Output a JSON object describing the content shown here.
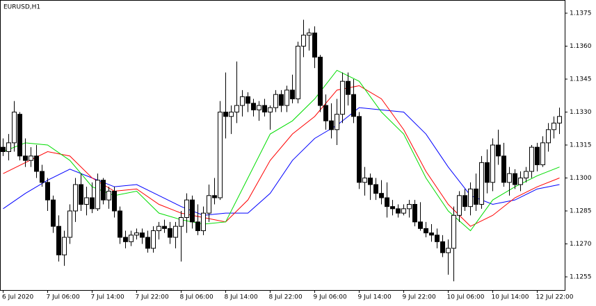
{
  "chart_data": {
    "type": "candlestick",
    "title": "EURUSD,H1",
    "categories": [
      "6 Jul 2020",
      null,
      null,
      null,
      null,
      null,
      null,
      null,
      "7 Jul 06:00",
      null,
      null,
      null,
      null,
      null,
      null,
      null,
      "7 Jul 14:00",
      null,
      null,
      null,
      null,
      null,
      null,
      null,
      "7 Jul 22:00",
      null,
      null,
      null,
      null,
      null,
      null,
      null,
      "8 Jul 06:00",
      null,
      null,
      null,
      null,
      null,
      null,
      null,
      "8 Jul 14:00",
      null,
      null,
      null,
      null,
      null,
      null,
      null,
      "8 Jul 22:00",
      null,
      null,
      null,
      null,
      null,
      null,
      null,
      "9 Jul 06:00",
      null,
      null,
      null,
      null,
      null,
      null,
      null,
      "9 Jul 14:00",
      null,
      null,
      null,
      null,
      null,
      null,
      null,
      "9 Jul 22:00",
      null,
      null,
      null,
      null,
      null,
      null,
      null,
      "10 Jul 06:00",
      null,
      null,
      null,
      null,
      null,
      null,
      null,
      "10 Jul 14:00",
      null,
      null,
      null,
      null,
      null,
      null,
      null,
      "12 Jul 22:00",
      null,
      null,
      null,
      null
    ],
    "ohlc": [
      [
        1.1314,
        1.1318,
        1.131,
        1.1312
      ],
      [
        1.1312,
        1.132,
        1.1308,
        1.1316
      ],
      [
        1.1316,
        1.1335,
        1.1312,
        1.133
      ],
      [
        1.1329,
        1.133,
        1.1308,
        1.131
      ],
      [
        1.131,
        1.1318,
        1.1305,
        1.1308
      ],
      [
        1.1308,
        1.1314,
        1.1305,
        1.131
      ],
      [
        1.131,
        1.1315,
        1.13,
        1.1303
      ],
      [
        1.1303,
        1.1306,
        1.1296,
        1.1298
      ],
      [
        1.1298,
        1.13,
        1.1285,
        1.129
      ],
      [
        1.129,
        1.1292,
        1.1275,
        1.1278
      ],
      [
        1.1278,
        1.1283,
        1.1262,
        1.1265
      ],
      [
        1.1265,
        1.1276,
        1.126,
        1.1273
      ],
      [
        1.1273,
        1.1288,
        1.127,
        1.1285
      ],
      [
        1.1285,
        1.13,
        1.128,
        1.1297
      ],
      [
        1.1297,
        1.1302,
        1.1285,
        1.1288
      ],
      [
        1.1288,
        1.1296,
        1.1283,
        1.1291
      ],
      [
        1.1291,
        1.1298,
        1.1284,
        1.1286
      ],
      [
        1.1286,
        1.1302,
        1.1285,
        1.1299
      ],
      [
        1.1299,
        1.13,
        1.1288,
        1.129
      ],
      [
        1.129,
        1.1296,
        1.1286,
        1.1294
      ],
      [
        1.1294,
        1.1296,
        1.1282,
        1.1285
      ],
      [
        1.1285,
        1.1287,
        1.127,
        1.1273
      ],
      [
        1.1273,
        1.1276,
        1.1268,
        1.1271
      ],
      [
        1.1271,
        1.1276,
        1.1269,
        1.1274
      ],
      [
        1.1274,
        1.1277,
        1.1272,
        1.1275
      ],
      [
        1.1275,
        1.1277,
        1.127,
        1.1273
      ],
      [
        1.1273,
        1.1276,
        1.1266,
        1.1268
      ],
      [
        1.1268,
        1.1278,
        1.1266,
        1.1276
      ],
      [
        1.1276,
        1.128,
        1.1272,
        1.1278
      ],
      [
        1.1278,
        1.1281,
        1.1275,
        1.1277
      ],
      [
        1.1277,
        1.128,
        1.127,
        1.1273
      ],
      [
        1.1273,
        1.128,
        1.1268,
        1.1278
      ],
      [
        1.1278,
        1.1285,
        1.1262,
        1.1282
      ],
      [
        1.1282,
        1.1293,
        1.1275,
        1.129
      ],
      [
        1.129,
        1.1292,
        1.1277,
        1.128
      ],
      [
        1.128,
        1.1288,
        1.1274,
        1.1276
      ],
      [
        1.1276,
        1.1287,
        1.1274,
        1.1284
      ],
      [
        1.1284,
        1.1297,
        1.128,
        1.1292
      ],
      [
        1.1292,
        1.13,
        1.1288,
        1.1291
      ],
      [
        1.1291,
        1.1335,
        1.129,
        1.133
      ],
      [
        1.133,
        1.1348,
        1.1318,
        1.1328
      ],
      [
        1.1328,
        1.1333,
        1.132,
        1.133
      ],
      [
        1.133,
        1.1353,
        1.1325,
        1.1333
      ],
      [
        1.1333,
        1.134,
        1.1328,
        1.1337
      ],
      [
        1.1337,
        1.1339,
        1.133,
        1.1334
      ],
      [
        1.1334,
        1.1336,
        1.1328,
        1.1331
      ],
      [
        1.1331,
        1.1335,
        1.1326,
        1.1333
      ],
      [
        1.1333,
        1.1336,
        1.1328,
        1.133
      ],
      [
        1.133,
        1.1333,
        1.1322,
        1.1332
      ],
      [
        1.1332,
        1.134,
        1.133,
        1.1338
      ],
      [
        1.1338,
        1.134,
        1.133,
        1.1333
      ],
      [
        1.1333,
        1.1342,
        1.133,
        1.134
      ],
      [
        1.134,
        1.1347,
        1.1334,
        1.1336
      ],
      [
        1.1336,
        1.1362,
        1.1334,
        1.136
      ],
      [
        1.136,
        1.1372,
        1.1355,
        1.1365
      ],
      [
        1.1365,
        1.1368,
        1.1358,
        1.1366
      ],
      [
        1.1366,
        1.1369,
        1.135,
        1.1355
      ],
      [
        1.1355,
        1.1356,
        1.133,
        1.1333
      ],
      [
        1.1333,
        1.1338,
        1.1322,
        1.1326
      ],
      [
        1.1326,
        1.1334,
        1.1318,
        1.1322
      ],
      [
        1.1322,
        1.1336,
        1.1315,
        1.1329
      ],
      [
        1.1329,
        1.1348,
        1.1325,
        1.1344
      ],
      [
        1.1344,
        1.1348,
        1.1333,
        1.1338
      ],
      [
        1.1338,
        1.1345,
        1.1325,
        1.1328
      ],
      [
        1.1328,
        1.133,
        1.1295,
        1.1298
      ],
      [
        1.1298,
        1.1305,
        1.1292,
        1.13
      ],
      [
        1.13,
        1.1302,
        1.129,
        1.1297
      ],
      [
        1.1297,
        1.13,
        1.129,
        1.1293
      ],
      [
        1.1293,
        1.1299,
        1.1288,
        1.1291
      ],
      [
        1.1291,
        1.1298,
        1.1282,
        1.1287
      ],
      [
        1.1287,
        1.129,
        1.1283,
        1.1286
      ],
      [
        1.1286,
        1.1288,
        1.1282,
        1.1284
      ],
      [
        1.1284,
        1.1288,
        1.1283,
        1.1286
      ],
      [
        1.1286,
        1.129,
        1.1282,
        1.1288
      ],
      [
        1.1288,
        1.129,
        1.1278,
        1.128
      ],
      [
        1.128,
        1.1289,
        1.1276,
        1.1277
      ],
      [
        1.1277,
        1.128,
        1.1273,
        1.1275
      ],
      [
        1.1275,
        1.1279,
        1.1271,
        1.1274
      ],
      [
        1.1274,
        1.1277,
        1.1268,
        1.1271
      ],
      [
        1.1271,
        1.1274,
        1.1264,
        1.1266
      ],
      [
        1.1266,
        1.1272,
        1.1256,
        1.1268
      ],
      [
        1.1268,
        1.1287,
        1.1253,
        1.1283
      ],
      [
        1.1283,
        1.1294,
        1.128,
        1.1292
      ],
      [
        1.1292,
        1.1295,
        1.1285,
        1.1287
      ],
      [
        1.1287,
        1.1298,
        1.1283,
        1.1295
      ],
      [
        1.1295,
        1.1302,
        1.1285,
        1.1288
      ],
      [
        1.1288,
        1.131,
        1.1286,
        1.1307
      ],
      [
        1.1307,
        1.1313,
        1.1293,
        1.1298
      ],
      [
        1.1298,
        1.1318,
        1.1294,
        1.1315
      ],
      [
        1.1315,
        1.1322,
        1.1306,
        1.131
      ],
      [
        1.131,
        1.1316,
        1.1296,
        1.1298
      ],
      [
        1.1298,
        1.1305,
        1.1292,
        1.1302
      ],
      [
        1.1302,
        1.1304,
        1.1295,
        1.1297
      ],
      [
        1.1297,
        1.1303,
        1.1294,
        1.13
      ],
      [
        1.13,
        1.1305,
        1.1298,
        1.1303
      ],
      [
        1.1303,
        1.1315,
        1.13,
        1.1314
      ],
      [
        1.1314,
        1.1316,
        1.1303,
        1.1306
      ],
      [
        1.1306,
        1.1319,
        1.1305,
        1.1316
      ],
      [
        1.1316,
        1.1325,
        1.1312,
        1.1322
      ],
      [
        1.1322,
        1.1328,
        1.1318,
        1.1325
      ],
      [
        1.1325,
        1.1332,
        1.132,
        1.1328
      ]
    ],
    "lines": [
      {
        "color": "#0000ff",
        "x": [
          0,
          4,
          8,
          12,
          16,
          20,
          24,
          28,
          32,
          36,
          40,
          44,
          48,
          52,
          56,
          60,
          64,
          68,
          72,
          76,
          80,
          84,
          88,
          92,
          96,
          100
        ],
        "values": [
          1.1286,
          1.1293,
          1.1299,
          1.1304,
          1.13,
          1.1296,
          1.1297,
          1.1292,
          1.1287,
          1.1283,
          1.1284,
          1.1284,
          1.1293,
          1.1308,
          1.1318,
          1.1324,
          1.1332,
          1.1331,
          1.133,
          1.132,
          1.1305,
          1.1292,
          1.1288,
          1.129,
          1.1295,
          1.1297
        ]
      },
      {
        "color": "#ff0000",
        "x": [
          0,
          4,
          8,
          12,
          16,
          20,
          24,
          28,
          32,
          36,
          40,
          44,
          48,
          52,
          56,
          60,
          64,
          68,
          72,
          76,
          80,
          84,
          88,
          92,
          96,
          100
        ],
        "values": [
          1.1302,
          1.1307,
          1.1312,
          1.131,
          1.13,
          1.1294,
          1.1295,
          1.1288,
          1.1284,
          1.1282,
          1.128,
          1.129,
          1.1308,
          1.132,
          1.1328,
          1.134,
          1.1342,
          1.1336,
          1.1322,
          1.1303,
          1.1288,
          1.1278,
          1.1283,
          1.1291,
          1.1296,
          1.13
        ]
      },
      {
        "color": "#00dd00",
        "x": [
          0,
          4,
          8,
          12,
          16,
          20,
          24,
          28,
          32,
          36,
          40,
          44,
          48,
          52,
          56,
          60,
          64,
          68,
          72,
          76,
          80,
          84,
          88,
          92,
          96,
          100
        ],
        "values": [
          1.1312,
          1.1316,
          1.1315,
          1.1308,
          1.1296,
          1.1292,
          1.1294,
          1.1284,
          1.1281,
          1.1279,
          1.128,
          1.13,
          1.132,
          1.1326,
          1.1336,
          1.1349,
          1.1344,
          1.133,
          1.132,
          1.13,
          1.1285,
          1.1276,
          1.129,
          1.1296,
          1.1301,
          1.1305
        ]
      }
    ],
    "ylim": [
      1.1249,
      1.1381
    ],
    "yticks": [
      1.1255,
      {
        "value": 1.127,
        "label": "1.1270"
      },
      1.1285,
      {
        "value": 1.13,
        "label": "1.1300"
      },
      1.1315,
      {
        "value": 1.133,
        "label": "1.1330"
      },
      1.1345,
      {
        "value": 1.136,
        "label": "1.1360"
      },
      1.1375
    ]
  }
}
